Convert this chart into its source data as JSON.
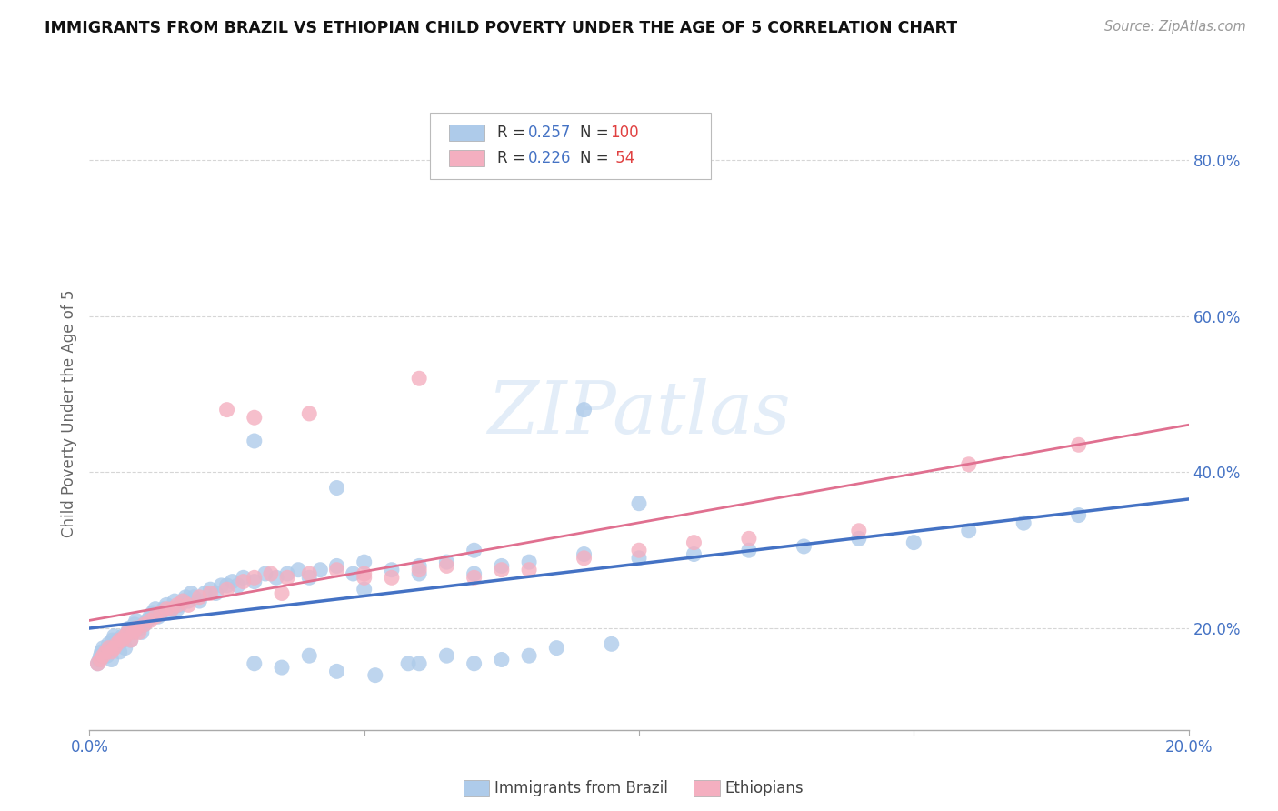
{
  "title": "IMMIGRANTS FROM BRAZIL VS ETHIOPIAN CHILD POVERTY UNDER THE AGE OF 5 CORRELATION CHART",
  "source": "Source: ZipAtlas.com",
  "ylabel": "Child Poverty Under the Age of 5",
  "ytick_labels": [
    "20.0%",
    "40.0%",
    "60.0%",
    "80.0%"
  ],
  "ytick_values": [
    0.2,
    0.4,
    0.6,
    0.8
  ],
  "brazil_color": "#aecbea",
  "ethiopia_color": "#f4afc0",
  "brazil_line_color": "#4472c4",
  "ethiopia_line_color": "#e07090",
  "watermark_text": "ZIPatlas",
  "xmin": 0.0,
  "xmax": 0.02,
  "ymin": 0.07,
  "ymax": 0.88,
  "brazil_x": [
    0.00015,
    0.00018,
    0.0002,
    0.00022,
    0.00025,
    0.0003,
    0.00032,
    0.00035,
    0.00038,
    0.0004,
    0.00042,
    0.00045,
    0.00048,
    0.0005,
    0.00055,
    0.0006,
    0.00062,
    0.00065,
    0.0007,
    0.00072,
    0.00075,
    0.0008,
    0.00082,
    0.00085,
    0.0009,
    0.00095,
    0.001,
    0.00105,
    0.0011,
    0.00115,
    0.0012,
    0.00125,
    0.0013,
    0.00135,
    0.0014,
    0.00145,
    0.0015,
    0.00155,
    0.0016,
    0.00165,
    0.0017,
    0.00175,
    0.0018,
    0.00185,
    0.0019,
    0.002,
    0.0021,
    0.0022,
    0.0023,
    0.0024,
    0.0025,
    0.0026,
    0.0027,
    0.0028,
    0.003,
    0.0032,
    0.0034,
    0.0036,
    0.0038,
    0.004,
    0.0042,
    0.0045,
    0.0048,
    0.005,
    0.0055,
    0.006,
    0.0065,
    0.007,
    0.0075,
    0.008,
    0.009,
    0.01,
    0.011,
    0.012,
    0.013,
    0.014,
    0.015,
    0.016,
    0.017,
    0.018,
    0.003,
    0.0035,
    0.0045,
    0.0052,
    0.0058,
    0.006,
    0.0065,
    0.007,
    0.0075,
    0.008,
    0.0085,
    0.009,
    0.0095,
    0.01,
    0.0045,
    0.003,
    0.004,
    0.005,
    0.006,
    0.007
  ],
  "brazil_y": [
    0.155,
    0.16,
    0.165,
    0.17,
    0.175,
    0.17,
    0.165,
    0.18,
    0.175,
    0.16,
    0.185,
    0.19,
    0.18,
    0.185,
    0.17,
    0.19,
    0.185,
    0.175,
    0.195,
    0.2,
    0.185,
    0.195,
    0.205,
    0.21,
    0.2,
    0.195,
    0.205,
    0.21,
    0.215,
    0.22,
    0.225,
    0.215,
    0.22,
    0.225,
    0.23,
    0.22,
    0.225,
    0.235,
    0.225,
    0.23,
    0.235,
    0.24,
    0.235,
    0.245,
    0.24,
    0.235,
    0.245,
    0.25,
    0.245,
    0.255,
    0.255,
    0.26,
    0.255,
    0.265,
    0.26,
    0.27,
    0.265,
    0.27,
    0.275,
    0.265,
    0.275,
    0.28,
    0.27,
    0.285,
    0.275,
    0.28,
    0.285,
    0.27,
    0.28,
    0.285,
    0.295,
    0.29,
    0.295,
    0.3,
    0.305,
    0.315,
    0.31,
    0.325,
    0.335,
    0.345,
    0.155,
    0.15,
    0.145,
    0.14,
    0.155,
    0.155,
    0.165,
    0.155,
    0.16,
    0.165,
    0.175,
    0.48,
    0.18,
    0.36,
    0.38,
    0.44,
    0.165,
    0.25,
    0.27,
    0.3
  ],
  "ethiopia_x": [
    0.00015,
    0.0002,
    0.00025,
    0.0003,
    0.00035,
    0.0004,
    0.00045,
    0.0005,
    0.00055,
    0.0006,
    0.00065,
    0.0007,
    0.00075,
    0.0008,
    0.00085,
    0.0009,
    0.001,
    0.0011,
    0.0012,
    0.0013,
    0.0014,
    0.0015,
    0.0016,
    0.0017,
    0.0018,
    0.002,
    0.0022,
    0.0025,
    0.0028,
    0.003,
    0.0033,
    0.0036,
    0.004,
    0.0045,
    0.005,
    0.0055,
    0.006,
    0.0065,
    0.007,
    0.0075,
    0.008,
    0.009,
    0.01,
    0.011,
    0.012,
    0.014,
    0.016,
    0.018,
    0.003,
    0.004,
    0.0025,
    0.0035,
    0.005,
    0.006
  ],
  "ethiopia_y": [
    0.155,
    0.16,
    0.165,
    0.17,
    0.175,
    0.17,
    0.175,
    0.18,
    0.185,
    0.185,
    0.19,
    0.195,
    0.185,
    0.195,
    0.2,
    0.195,
    0.205,
    0.21,
    0.215,
    0.22,
    0.225,
    0.225,
    0.23,
    0.235,
    0.23,
    0.24,
    0.245,
    0.25,
    0.26,
    0.265,
    0.27,
    0.265,
    0.27,
    0.275,
    0.27,
    0.265,
    0.275,
    0.28,
    0.265,
    0.275,
    0.275,
    0.29,
    0.3,
    0.31,
    0.315,
    0.325,
    0.41,
    0.435,
    0.47,
    0.475,
    0.48,
    0.245,
    0.265,
    0.52
  ]
}
